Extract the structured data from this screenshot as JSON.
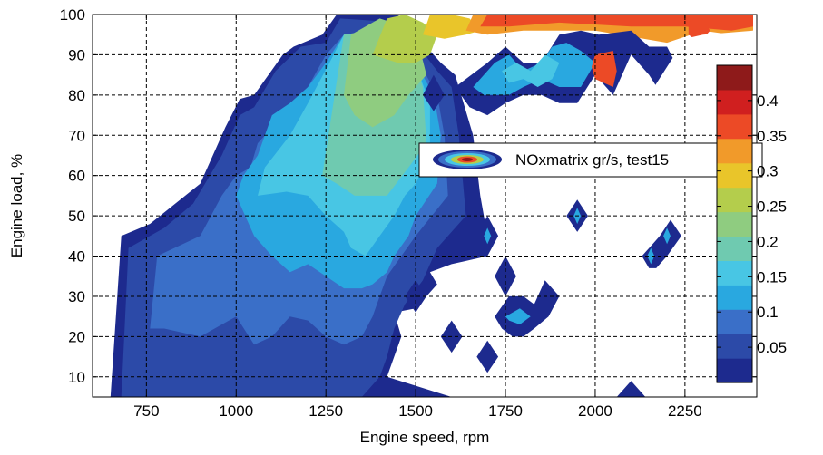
{
  "chart_data": {
    "type": "heatmap",
    "subtype": "filled-contour",
    "xlabel": "Engine speed, rpm",
    "ylabel": "Engine load, %",
    "xlim": [
      600,
      2450
    ],
    "ylim": [
      5,
      100
    ],
    "x_ticks": [
      "750",
      "1000",
      "1250",
      "1500",
      "1750",
      "2000",
      "2250"
    ],
    "y_ticks": [
      "10",
      "20",
      "30",
      "40",
      "50",
      "60",
      "70",
      "80",
      "90",
      "100"
    ],
    "x_tick_values": [
      750,
      1000,
      1250,
      1500,
      1750,
      2000,
      2250
    ],
    "y_tick_values": [
      10,
      20,
      30,
      40,
      50,
      60,
      70,
      80,
      90,
      100
    ],
    "grid": true,
    "legend": {
      "label": "NOxmatrix gr/s, test15",
      "placement": "inside-right"
    },
    "colorbar": {
      "min": 0,
      "max": 0.45,
      "ticks": [
        "0.05",
        "0.1",
        "0.15",
        "0.2",
        "0.25",
        "0.3",
        "0.35",
        "0.4"
      ],
      "tick_values": [
        0.05,
        0.1,
        0.15,
        0.2,
        0.25,
        0.3,
        0.35,
        0.4
      ],
      "colormap": "jet"
    },
    "level_colors": [
      "#ffffff",
      "#1d2a8e",
      "#2c4aa8",
      "#3a6fc8",
      "#29a8e0",
      "#48c6e4",
      "#6fcab0",
      "#8fcc80",
      "#b4cd4c",
      "#e9c52a",
      "#f19a2a",
      "#ec4a26",
      "#d01f1f",
      "#8e1a1a"
    ],
    "regions": [
      {
        "level": 1,
        "x": [
          650,
          680,
          760,
          900,
          970,
          1010,
          1050,
          1130,
          1160,
          1240,
          1280,
          1450,
          1500,
          1570,
          1610,
          1660,
          1680,
          1700,
          1700,
          1600,
          1540,
          1560,
          1500,
          1440,
          1460,
          1420,
          1600,
          1620,
          1650
        ],
        "y": [
          5,
          45,
          48,
          58,
          72,
          79,
          80,
          90,
          92,
          95,
          100,
          100,
          95,
          88,
          85,
          70,
          55,
          45,
          40,
          38,
          36,
          33,
          27,
          26,
          20,
          10,
          5,
          5,
          5
        ]
      },
      {
        "level": 2,
        "x": [
          680,
          700,
          800,
          880,
          960,
          1010,
          1050,
          1110,
          1180,
          1250,
          1290,
          1460,
          1500,
          1560,
          1600,
          1620,
          1640,
          1560,
          1520,
          1470,
          1440,
          1420,
          1400,
          1350,
          900,
          800,
          700
        ],
        "y": [
          5,
          42,
          47,
          53,
          65,
          75,
          77,
          86,
          92,
          93,
          99,
          98,
          93,
          86,
          82,
          70,
          50,
          42,
          34,
          28,
          22,
          15,
          10,
          5,
          5,
          5,
          5
        ]
      },
      {
        "level": 3,
        "x": [
          760,
          780,
          900,
          960,
          1000,
          1040,
          1060,
          1140,
          1160,
          1200,
          1250,
          1300,
          1460,
          1510,
          1560,
          1580,
          1590,
          1500,
          1460,
          1420,
          1400,
          1380,
          1350,
          1300,
          1250,
          1200,
          1150,
          1100,
          1050,
          1000,
          900,
          800
        ],
        "y": [
          22,
          40,
          45,
          55,
          60,
          62,
          68,
          76,
          78,
          82,
          90,
          95,
          95,
          88,
          80,
          70,
          55,
          45,
          40,
          35,
          30,
          25,
          20,
          18,
          20,
          24,
          25,
          20,
          18,
          25,
          20,
          22
        ]
      },
      {
        "level": 4,
        "x": [
          1000,
          1020,
          1060,
          1100,
          1150,
          1200,
          1250,
          1300,
          1450,
          1500,
          1550,
          1570,
          1560,
          1500,
          1480,
          1440,
          1420,
          1380,
          1350,
          1300,
          1250,
          1200,
          1150,
          1100,
          1050
        ],
        "y": [
          55,
          60,
          65,
          75,
          78,
          82,
          88,
          95,
          95,
          88,
          80,
          70,
          58,
          50,
          45,
          40,
          36,
          33,
          32,
          32,
          35,
          38,
          36,
          40,
          45
        ]
      },
      {
        "level": 5,
        "x": [
          1060,
          1080,
          1150,
          1200,
          1260,
          1300,
          1450,
          1480,
          1510,
          1540,
          1540,
          1500,
          1470,
          1440,
          1400,
          1360,
          1320,
          1300,
          1250,
          1200,
          1140
        ],
        "y": [
          55,
          62,
          70,
          78,
          88,
          95,
          95,
          90,
          85,
          78,
          65,
          58,
          55,
          50,
          45,
          40,
          42,
          46,
          50,
          55,
          56
        ]
      },
      {
        "level": 6,
        "x": [
          1240,
          1300,
          1450,
          1490,
          1520,
          1530,
          1480,
          1420,
          1380,
          1330,
          1280
        ],
        "y": [
          60,
          95,
          97,
          90,
          82,
          68,
          62,
          55,
          55,
          55,
          58
        ]
      },
      {
        "level": 7,
        "x": [
          1300,
          1320,
          1400,
          1470,
          1510,
          1530,
          1480,
          1440,
          1380,
          1330
        ],
        "y": [
          80,
          95,
          99,
          97,
          92,
          85,
          80,
          75,
          72,
          75
        ]
      },
      {
        "level": 8,
        "x": [
          1380,
          1420,
          1470,
          1520,
          1560,
          1540,
          1500,
          1450
        ],
        "y": [
          90,
          99,
          100,
          98,
          95,
          90,
          88,
          88
        ]
      },
      {
        "level": 9,
        "x": [
          1520,
          1540,
          1600,
          1650,
          1680,
          1640,
          1580
        ],
        "y": [
          95,
          100,
          100,
          99,
          96,
          95,
          94
        ]
      },
      {
        "level": 10,
        "x": [
          1640,
          1660,
          2300,
          2320,
          2440,
          2440,
          2380,
          2300,
          2200,
          2000,
          1800,
          1700
        ],
        "y": [
          96,
          100,
          100,
          100,
          100,
          96,
          95,
          96,
          93,
          96,
          96,
          95
        ]
      },
      {
        "level": 11,
        "x": [
          1680,
          1700,
          2350,
          2440,
          2440,
          2380,
          2250,
          2100,
          1900,
          1760
        ],
        "y": [
          97,
          100,
          100,
          100,
          97,
          96,
          97,
          97,
          98,
          97
        ]
      },
      {
        "level": 1,
        "x": [
          1610,
          1700,
          1750,
          1800,
          1850,
          1900,
          1960,
          2010,
          2100,
          2150,
          2200,
          2240,
          2200,
          2150,
          2100,
          2050,
          2000,
          1950,
          1900,
          1850,
          1800,
          1750,
          1700,
          1650
        ],
        "y": [
          82,
          88,
          92,
          88,
          88,
          95,
          96,
          95,
          96,
          92,
          92,
          85,
          78,
          85,
          90,
          80,
          85,
          78,
          78,
          80,
          80,
          78,
          75,
          77
        ]
      },
      {
        "level": 4,
        "x": [
          1660,
          1720,
          1760,
          1800,
          1850,
          1880,
          1920,
          1960,
          2000,
          1960,
          1900,
          1850,
          1800,
          1760,
          1720,
          1690
        ],
        "y": [
          82,
          88,
          90,
          86,
          88,
          92,
          93,
          91,
          88,
          82,
          82,
          84,
          82,
          80,
          80,
          80
        ]
      },
      {
        "level": 5,
        "x": [
          1740,
          1780,
          1820,
          1860,
          1900,
          1880,
          1840,
          1800,
          1760
        ],
        "y": [
          86,
          88,
          86,
          90,
          88,
          84,
          82,
          84,
          83
        ]
      },
      {
        "level": 11,
        "x": [
          2000,
          2050,
          2060,
          2050,
          2000,
          1990
        ],
        "y": [
          90,
          91,
          86,
          82,
          84,
          87
        ]
      },
      {
        "level": 11,
        "x": [
          2260,
          2290,
          2320,
          2290,
          2260
        ],
        "y": [
          98,
          100,
          96,
          93,
          95
        ]
      },
      {
        "level": 1,
        "x": [
          1520,
          1550,
          1580,
          1550
        ],
        "y": [
          80,
          85,
          80,
          76
        ]
      },
      {
        "level": 1,
        "x": [
          1670,
          1700,
          1730,
          1700
        ],
        "y": [
          45,
          50,
          45,
          40
        ]
      },
      {
        "level": 4,
        "x": [
          1690,
          1700,
          1710,
          1700
        ],
        "y": [
          45,
          47,
          45,
          43
        ]
      },
      {
        "level": 1,
        "x": [
          1920,
          1950,
          1980,
          1950
        ],
        "y": [
          50,
          54,
          50,
          46
        ]
      },
      {
        "level": 4,
        "x": [
          1940,
          1950,
          1960,
          1950
        ],
        "y": [
          50,
          52,
          50,
          48
        ]
      },
      {
        "level": 1,
        "x": [
          2130,
          2160,
          2180,
          2210,
          2240,
          2200,
          2170,
          2150
        ],
        "y": [
          40,
          43,
          45,
          49,
          45,
          40,
          37,
          37
        ]
      },
      {
        "level": 4,
        "x": [
          2190,
          2200,
          2210,
          2200
        ],
        "y": [
          45,
          47,
          45,
          43
        ]
      },
      {
        "level": 4,
        "x": [
          2145,
          2155,
          2165,
          2155
        ],
        "y": [
          40,
          42,
          40,
          38
        ]
      },
      {
        "level": 1,
        "x": [
          1720,
          1750,
          1780,
          1750
        ],
        "y": [
          35,
          40,
          35,
          30
        ]
      },
      {
        "level": 1,
        "x": [
          1470,
          1500,
          1530,
          1500
        ],
        "y": [
          30,
          34,
          30,
          26
        ]
      },
      {
        "level": 1,
        "x": [
          1720,
          1760,
          1800,
          1830,
          1860,
          1900,
          1870,
          1830,
          1800,
          1770,
          1740
        ],
        "y": [
          25,
          30,
          30,
          28,
          34,
          30,
          25,
          22,
          20,
          20,
          22
        ]
      },
      {
        "level": 4,
        "x": [
          1750,
          1790,
          1820,
          1790,
          1760
        ],
        "y": [
          25,
          27,
          25,
          23,
          24
        ]
      },
      {
        "level": 1,
        "x": [
          1570,
          1600,
          1630,
          1600
        ],
        "y": [
          20,
          24,
          20,
          16
        ]
      },
      {
        "level": 1,
        "x": [
          1670,
          1700,
          1730,
          1700
        ],
        "y": [
          15,
          19,
          15,
          11
        ]
      },
      {
        "level": 1,
        "x": [
          2060,
          2100,
          2140
        ],
        "y": [
          5,
          9,
          5
        ]
      },
      {
        "level": 0,
        "x": [
          1900,
          2440,
          2440,
          2300,
          2250,
          2150,
          2100,
          2040
        ],
        "y": [
          74,
          74,
          96,
          95,
          94,
          80,
          77,
          75
        ]
      }
    ]
  }
}
